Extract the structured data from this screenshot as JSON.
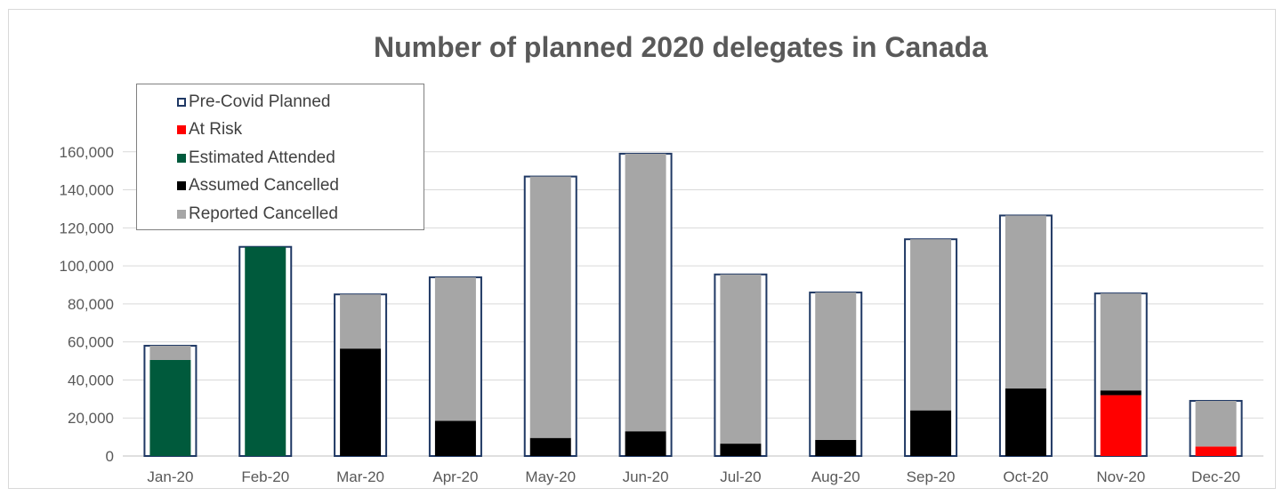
{
  "chart_data": {
    "type": "bar",
    "title": "Number of planned 2020 delegates in Canada",
    "categories": [
      "Jan-20",
      "Feb-20",
      "Mar-20",
      "Apr-20",
      "May-20",
      "Jun-20",
      "Jul-20",
      "Aug-20",
      "Sep-20",
      "Oct-20",
      "Nov-20",
      "Dec-20"
    ],
    "ylim": [
      0,
      180000
    ],
    "yticks": [
      0,
      20000,
      40000,
      60000,
      80000,
      100000,
      120000,
      140000,
      160000
    ],
    "ytick_labels": [
      "0",
      "20,000",
      "40,000",
      "60,000",
      "80,000",
      "100,000",
      "120,000",
      "140,000",
      "160,000"
    ],
    "grid": true,
    "legend_position": "top-left",
    "series": [
      {
        "name": "Pre-Covid Planned",
        "color": "#1f3864",
        "style": "outline",
        "values": [
          58000,
          110000,
          85000,
          94000,
          147000,
          159000,
          95500,
          86000,
          114000,
          126500,
          85500,
          29000
        ]
      },
      {
        "name": "At Risk",
        "color": "#ff0000",
        "stack": true,
        "values": [
          0,
          0,
          0,
          0,
          0,
          0,
          0,
          0,
          0,
          0,
          32000,
          5000
        ]
      },
      {
        "name": "Estimated Attended",
        "color": "#005a3c",
        "stack": true,
        "values": [
          50500,
          110000,
          0,
          0,
          0,
          0,
          0,
          0,
          0,
          0,
          0,
          0
        ]
      },
      {
        "name": "Assumed Cancelled",
        "color": "#000000",
        "stack": true,
        "values": [
          0,
          0,
          56500,
          18500,
          9500,
          13000,
          6500,
          8500,
          24000,
          35500,
          2500,
          0
        ]
      },
      {
        "name": "Reported Cancelled",
        "color": "#a6a6a6",
        "stack": true,
        "values": [
          7500,
          0,
          28500,
          75500,
          137500,
          146000,
          89000,
          77500,
          90000,
          91000,
          51000,
          24000
        ]
      }
    ]
  }
}
